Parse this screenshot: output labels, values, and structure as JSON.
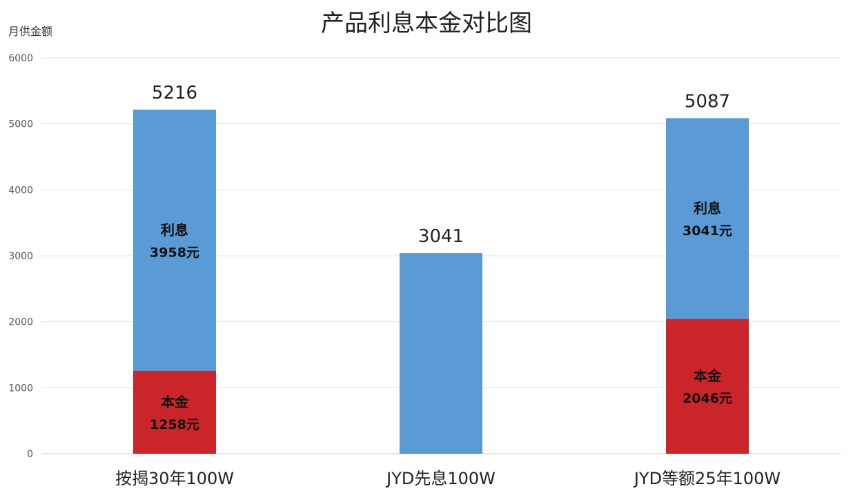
{
  "chart_data": {
    "type": "bar",
    "stacked": true,
    "title": "产品利息本金对比图",
    "ylabel": "月供金额",
    "xlabel": "",
    "ylim": [
      0,
      6000
    ],
    "yticks": [
      0,
      1000,
      2000,
      3000,
      4000,
      5000,
      6000
    ],
    "grid": true,
    "categories": [
      "按揭30年100W",
      "JYD先息100W",
      "JYD等额25年100W"
    ],
    "totals": [
      5216,
      3041,
      5087
    ],
    "series": [
      {
        "name": "本金",
        "color": "#c9252a",
        "values": [
          1258,
          0,
          2046
        ],
        "labels": [
          "1258元",
          "",
          "2046元"
        ]
      },
      {
        "name": "利息",
        "color": "#5b9bd5",
        "values": [
          3958,
          3041,
          3041
        ],
        "labels": [
          "3958元",
          "",
          "3041元"
        ]
      }
    ]
  }
}
